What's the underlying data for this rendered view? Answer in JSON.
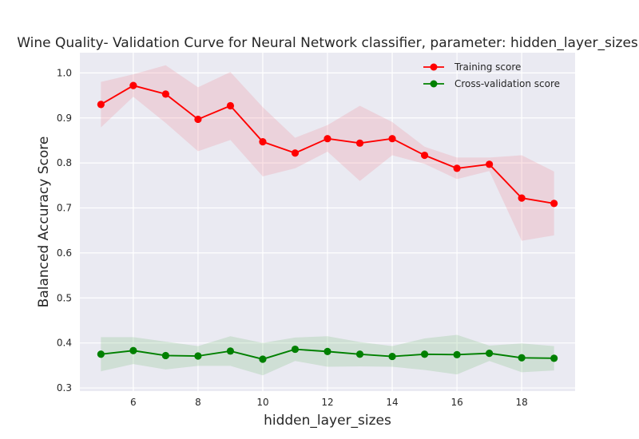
{
  "chart_data": {
    "type": "line",
    "title": "Wine Quality- Validation Curve for Neural Network classifier, parameter: hidden_layer_sizes",
    "xlabel": "hidden_layer_sizes",
    "ylabel": "Balanced Accuracy Score",
    "x": [
      5,
      6,
      7,
      8,
      9,
      10,
      11,
      12,
      13,
      14,
      15,
      16,
      17,
      18,
      19
    ],
    "xlim": [
      4.35,
      19.65
    ],
    "ylim": [
      0.293,
      1.045
    ],
    "xticks": [
      6,
      8,
      10,
      12,
      14,
      16,
      18
    ],
    "yticks": [
      0.3,
      0.4,
      0.5,
      0.6,
      0.7,
      0.8,
      0.9,
      1.0
    ],
    "xtick_labels": [
      "6",
      "8",
      "10",
      "12",
      "14",
      "16",
      "18"
    ],
    "ytick_labels": [
      "0.3",
      "0.4",
      "0.5",
      "0.6",
      "0.7",
      "0.8",
      "0.9",
      "1.0"
    ],
    "grid": true,
    "legend_position": "top-right",
    "series": [
      {
        "name": "Training score",
        "color": "#ff0000",
        "band_color": "#f08a98",
        "values": [
          0.93,
          0.972,
          0.953,
          0.897,
          0.927,
          0.847,
          0.822,
          0.854,
          0.844,
          0.854,
          0.817,
          0.788,
          0.797,
          0.722,
          0.71
        ],
        "upper": [
          0.98,
          0.997,
          1.017,
          0.968,
          1.002,
          0.924,
          0.856,
          0.884,
          0.927,
          0.891,
          0.836,
          0.812,
          0.812,
          0.817,
          0.781
        ],
        "lower": [
          0.879,
          0.947,
          0.889,
          0.826,
          0.851,
          0.77,
          0.788,
          0.825,
          0.76,
          0.817,
          0.798,
          0.764,
          0.782,
          0.627,
          0.639
        ]
      },
      {
        "name": "Cross-validation score",
        "color": "#008000",
        "band_color": "#7fbf7f",
        "values": [
          0.375,
          0.383,
          0.372,
          0.371,
          0.382,
          0.364,
          0.386,
          0.381,
          0.375,
          0.37,
          0.375,
          0.374,
          0.377,
          0.367,
          0.366
        ],
        "upper": [
          0.413,
          0.413,
          0.403,
          0.393,
          0.415,
          0.4,
          0.412,
          0.415,
          0.402,
          0.393,
          0.41,
          0.418,
          0.394,
          0.399,
          0.393
        ],
        "lower": [
          0.337,
          0.353,
          0.341,
          0.349,
          0.349,
          0.328,
          0.36,
          0.347,
          0.348,
          0.347,
          0.34,
          0.33,
          0.36,
          0.335,
          0.339
        ]
      }
    ]
  }
}
